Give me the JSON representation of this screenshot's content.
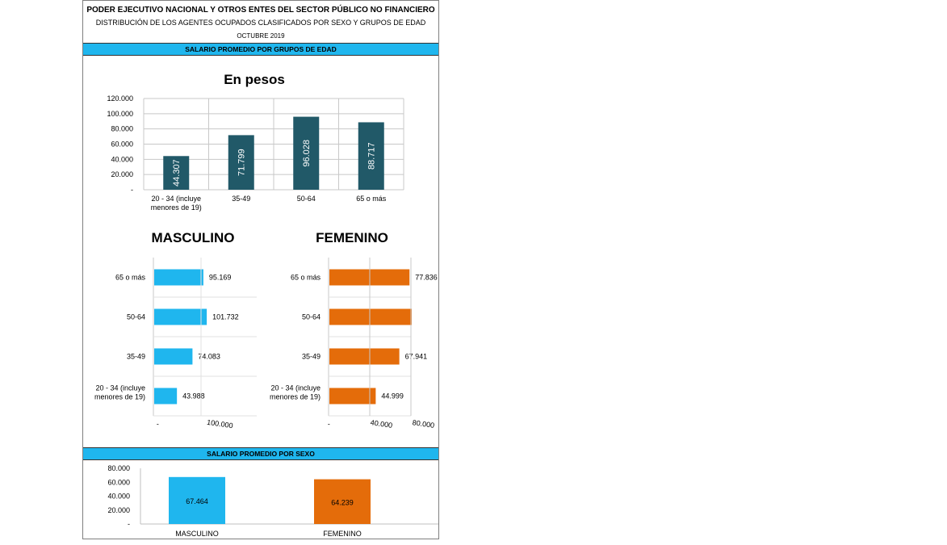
{
  "header": {
    "line1": "PODER EJECUTIVO NACIONAL Y OTROS ENTES DEL SECTOR PÚBLICO NO FINANCIERO",
    "line2": "DISTRIBUCIÓN DE LOS AGENTES OCUPADOS CLASIFICADOS POR SEXO Y GRUPOS DE EDAD",
    "line3": "OCTUBRE 2019"
  },
  "bands": {
    "age_section": "SALARIO PROMEDIO POR GRUPOS DE EDAD",
    "sex_section": "SALARIO PROMEDIO POR SEXO"
  },
  "colors": {
    "band": "#1fb6ee",
    "pesos_bar": "#215968",
    "masculino": "#1fb6ee",
    "femenino": "#e46c0a"
  },
  "chart_data": [
    {
      "type": "bar",
      "title": "En pesos",
      "categories": [
        "20 - 34 (incluye menores de 19)",
        "35-49",
        "50-64",
        "65 o más"
      ],
      "values": [
        44307,
        71799,
        96028,
        88717
      ],
      "data_labels": [
        "44.307",
        "71.799",
        "96.028",
        "88.717"
      ],
      "y_ticks": [
        "-",
        "20.000",
        "40.000",
        "60.000",
        "80.000",
        "100.000",
        "120.000"
      ],
      "ylim": [
        0,
        120000
      ],
      "grid": true
    },
    {
      "type": "bar",
      "orientation": "horizontal",
      "title": "MASCULINO",
      "categories": [
        "65 o más",
        "50-64",
        "35-49",
        "20 - 34 (incluye menores de 19)"
      ],
      "values": [
        95169,
        101732,
        74083,
        43988
      ],
      "data_labels": [
        "95.169",
        "101.732",
        "74.083",
        "43.988"
      ],
      "x_ticks": [
        "-",
        "100.000"
      ],
      "xlim": [
        0,
        200000
      ]
    },
    {
      "type": "bar",
      "orientation": "horizontal",
      "title": "FEMENINO",
      "categories": [
        "65 o más",
        "50-64",
        "35-49",
        "20 - 34 (incluye menores de 19)"
      ],
      "values": [
        77836,
        80000,
        67941,
        44999
      ],
      "data_labels": [
        "77.836",
        "",
        "67.941",
        "44.999"
      ],
      "x_ticks": [
        "-",
        "40.000",
        "80.000"
      ],
      "xlim": [
        0,
        80000
      ]
    },
    {
      "type": "bar",
      "categories": [
        "MASCULINO",
        "FEMENINO"
      ],
      "values": [
        67464,
        64239
      ],
      "data_labels": [
        "67.464",
        "64.239"
      ],
      "y_ticks": [
        "-",
        "20.000",
        "40.000",
        "60.000",
        "80.000"
      ],
      "ylim": [
        0,
        80000
      ]
    }
  ]
}
